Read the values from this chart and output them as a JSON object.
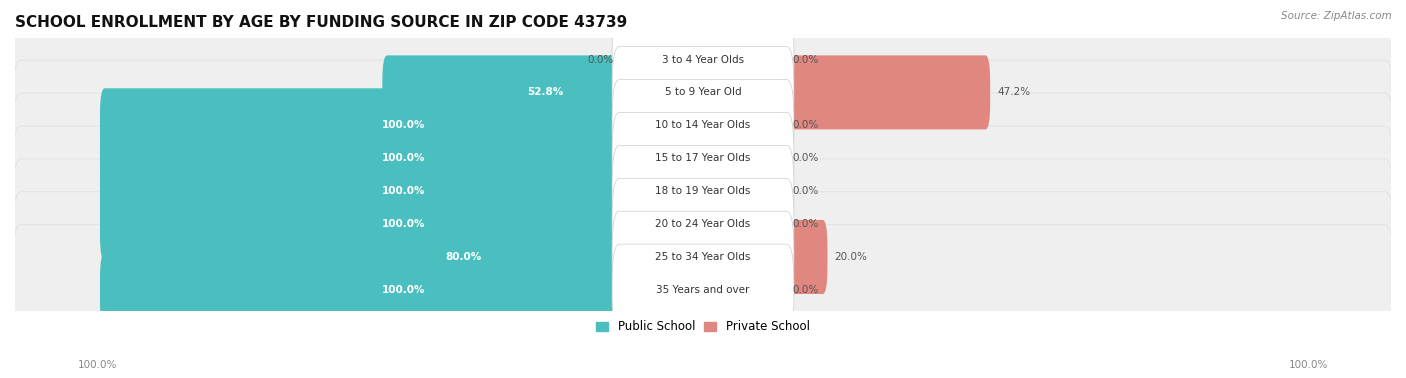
{
  "title": "SCHOOL ENROLLMENT BY AGE BY FUNDING SOURCE IN ZIP CODE 43739",
  "source": "Source: ZipAtlas.com",
  "categories": [
    "3 to 4 Year Olds",
    "5 to 9 Year Old",
    "10 to 14 Year Olds",
    "15 to 17 Year Olds",
    "18 to 19 Year Olds",
    "20 to 24 Year Olds",
    "25 to 34 Year Olds",
    "35 Years and over"
  ],
  "public_values": [
    0.0,
    52.8,
    100.0,
    100.0,
    100.0,
    100.0,
    80.0,
    100.0
  ],
  "private_values": [
    0.0,
    47.2,
    0.0,
    0.0,
    0.0,
    0.0,
    20.0,
    0.0
  ],
  "public_color": "#4BBFBF",
  "private_color": "#E08880",
  "public_label": "Public School",
  "private_label": "Private School",
  "row_bg_color": "#EFEFEF",
  "row_border_color": "#DDDDDD",
  "title_fontsize": 11,
  "label_fontsize": 7.5,
  "value_fontsize": 7.5,
  "legend_fontsize": 8.5,
  "axis_label_fontsize": 7.5,
  "axis_label_color": "#888888",
  "center_label_bg": "#FFFFFF",
  "center_label_text": "#333333",
  "bar_height": 0.65,
  "xlim_left": -115,
  "xlim_right": 115,
  "scale": 100
}
